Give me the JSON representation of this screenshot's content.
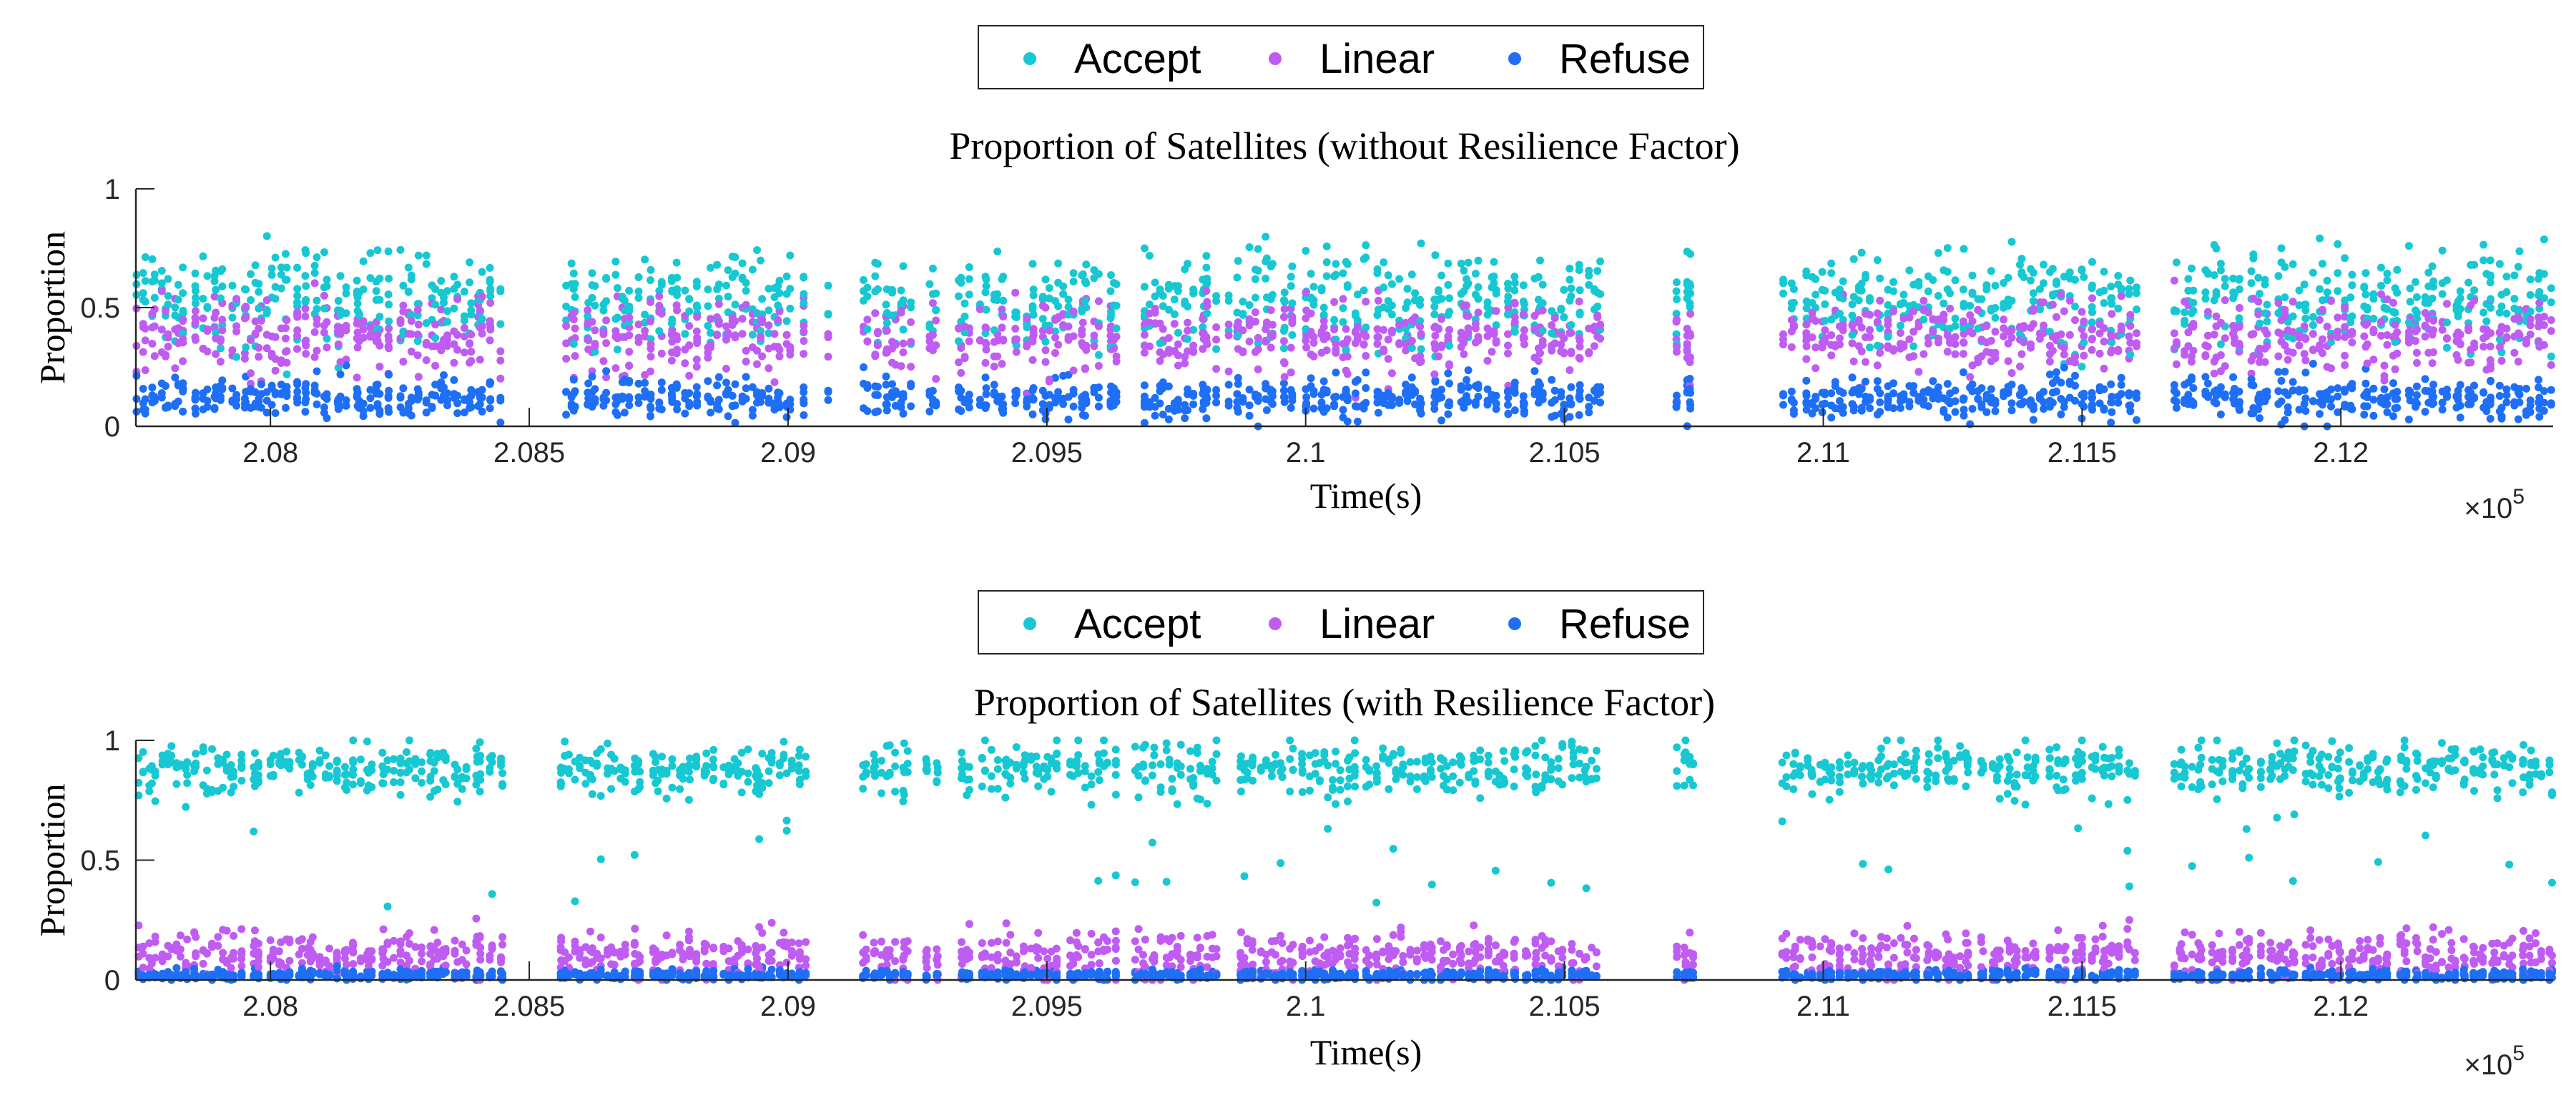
{
  "chart_data": [
    {
      "type": "scatter",
      "title": "Proportion of Satellites (without Resilience Factor)",
      "xlabel": "Time(s)",
      "ylabel": "Proportion",
      "x_multiplier_label": "×10",
      "x_multiplier_exponent": "5",
      "xlim": [
        2.0774,
        2.1241
      ],
      "ylim": [
        0,
        1
      ],
      "xticks": [
        2.08,
        2.085,
        2.09,
        2.095,
        2.1,
        2.105,
        2.11,
        2.115,
        2.12
      ],
      "xtick_labels": [
        "2.08",
        "2.085",
        "2.09",
        "2.095",
        "2.1",
        "2.105",
        "2.11",
        "2.115",
        "2.12"
      ],
      "yticks": [
        0,
        0.5,
        1
      ],
      "ytick_labels": [
        "0",
        "0.5",
        "1"
      ],
      "legend": {
        "position": "top-center",
        "entries": [
          {
            "name": "Accept",
            "color": "#17c8d2"
          },
          {
            "name": "Linear",
            "color": "#bf5cf2"
          },
          {
            "name": "Refuse",
            "color": "#1e6ff5"
          }
        ]
      },
      "active_intervals": [
        [
          2.0774,
          2.0845
        ],
        [
          2.0856,
          2.0904
        ],
        [
          2.0907,
          2.0908
        ],
        [
          2.0914,
          2.0924
        ],
        [
          2.0926,
          2.0929
        ],
        [
          2.0932,
          2.0936
        ],
        [
          2.0937,
          2.0964
        ],
        [
          2.0967,
          2.0983
        ],
        [
          2.0985,
          2.1057
        ],
        [
          2.1071,
          2.1075
        ],
        [
          2.1092,
          2.1161
        ],
        [
          2.1167,
          2.1241
        ]
      ],
      "series": [
        {
          "name": "Accept",
          "color": "#17c8d2",
          "baseline": 0.53,
          "spread": 0.18
        },
        {
          "name": "Linear",
          "color": "#bf5cf2",
          "baseline": 0.38,
          "spread": 0.14
        },
        {
          "name": "Refuse",
          "color": "#1e6ff5",
          "baseline": 0.12,
          "spread": 0.08
        }
      ]
    },
    {
      "type": "scatter",
      "title": "Proportion of Satellites (with Resilience Factor)",
      "xlabel": "Time(s)",
      "ylabel": "Proportion",
      "x_multiplier_label": "×10",
      "x_multiplier_exponent": "5",
      "xlim": [
        2.0774,
        2.1241
      ],
      "ylim": [
        0,
        1
      ],
      "xticks": [
        2.08,
        2.085,
        2.09,
        2.095,
        2.1,
        2.105,
        2.11,
        2.115,
        2.12
      ],
      "xtick_labels": [
        "2.08",
        "2.085",
        "2.09",
        "2.095",
        "2.1",
        "2.105",
        "2.11",
        "2.115",
        "2.12"
      ],
      "yticks": [
        0,
        0.5,
        1
      ],
      "ytick_labels": [
        "0",
        "0.5",
        "1"
      ],
      "legend": {
        "position": "top-center",
        "entries": [
          {
            "name": "Accept",
            "color": "#17c8d2"
          },
          {
            "name": "Linear",
            "color": "#bf5cf2"
          },
          {
            "name": "Refuse",
            "color": "#1e6ff5"
          }
        ]
      },
      "active_intervals": [
        [
          2.0774,
          2.0845
        ],
        [
          2.0856,
          2.0904
        ],
        [
          2.0907,
          2.0908
        ],
        [
          2.0914,
          2.0924
        ],
        [
          2.0926,
          2.0929
        ],
        [
          2.0932,
          2.0936
        ],
        [
          2.0937,
          2.0964
        ],
        [
          2.0967,
          2.0983
        ],
        [
          2.0985,
          2.1057
        ],
        [
          2.1071,
          2.1075
        ],
        [
          2.1092,
          2.1161
        ],
        [
          2.1167,
          2.1241
        ]
      ],
      "series": [
        {
          "name": "Accept",
          "color": "#17c8d2",
          "baseline": 0.88,
          "spread": 0.1
        },
        {
          "name": "Linear",
          "color": "#bf5cf2",
          "baseline": 0.1,
          "spread": 0.09
        },
        {
          "name": "Refuse",
          "color": "#1e6ff5",
          "baseline": 0.02,
          "spread": 0.02
        }
      ]
    }
  ]
}
